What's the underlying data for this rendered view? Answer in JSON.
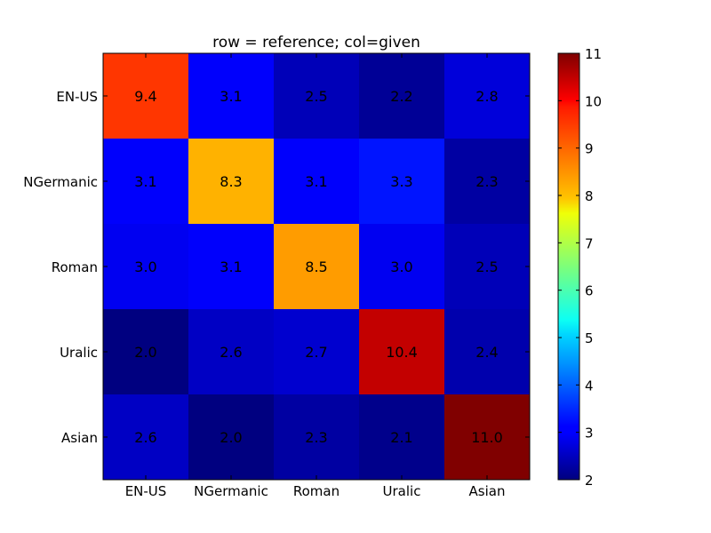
{
  "chart_data": {
    "type": "heatmap",
    "title": "row = reference; col=given",
    "row_labels": [
      "EN-US",
      "NGermanic",
      "Roman",
      "Uralic",
      "Asian"
    ],
    "col_labels": [
      "EN-US",
      "NGermanic",
      "Roman",
      "Uralic",
      "Asian"
    ],
    "values": [
      [
        9.4,
        3.1,
        2.5,
        2.2,
        2.8
      ],
      [
        3.1,
        8.3,
        3.1,
        3.3,
        2.3
      ],
      [
        3.0,
        3.1,
        8.5,
        3.0,
        2.5
      ],
      [
        2.0,
        2.6,
        2.7,
        10.4,
        2.4
      ],
      [
        2.6,
        2.0,
        2.3,
        2.1,
        11.0
      ]
    ],
    "cell_labels": [
      [
        "9.4",
        "3.1",
        "2.5",
        "2.2",
        "2.8"
      ],
      [
        "3.1",
        "8.3",
        "3.1",
        "3.3",
        "2.3"
      ],
      [
        "3.0",
        "3.1",
        "8.5",
        "3.0",
        "2.5"
      ],
      [
        "2.0",
        "2.6",
        "2.7",
        "10.4",
        "2.4"
      ],
      [
        "2.6",
        "2.0",
        "2.3",
        "2.1",
        "11.0"
      ]
    ],
    "colormap": "jet",
    "colorbar": {
      "min": 2,
      "max": 11,
      "ticks": [
        2,
        3,
        4,
        5,
        6,
        7,
        8,
        9,
        10,
        11
      ],
      "tick_labels": [
        "2",
        "3",
        "4",
        "5",
        "6",
        "7",
        "8",
        "9",
        "10",
        "11"
      ]
    }
  }
}
